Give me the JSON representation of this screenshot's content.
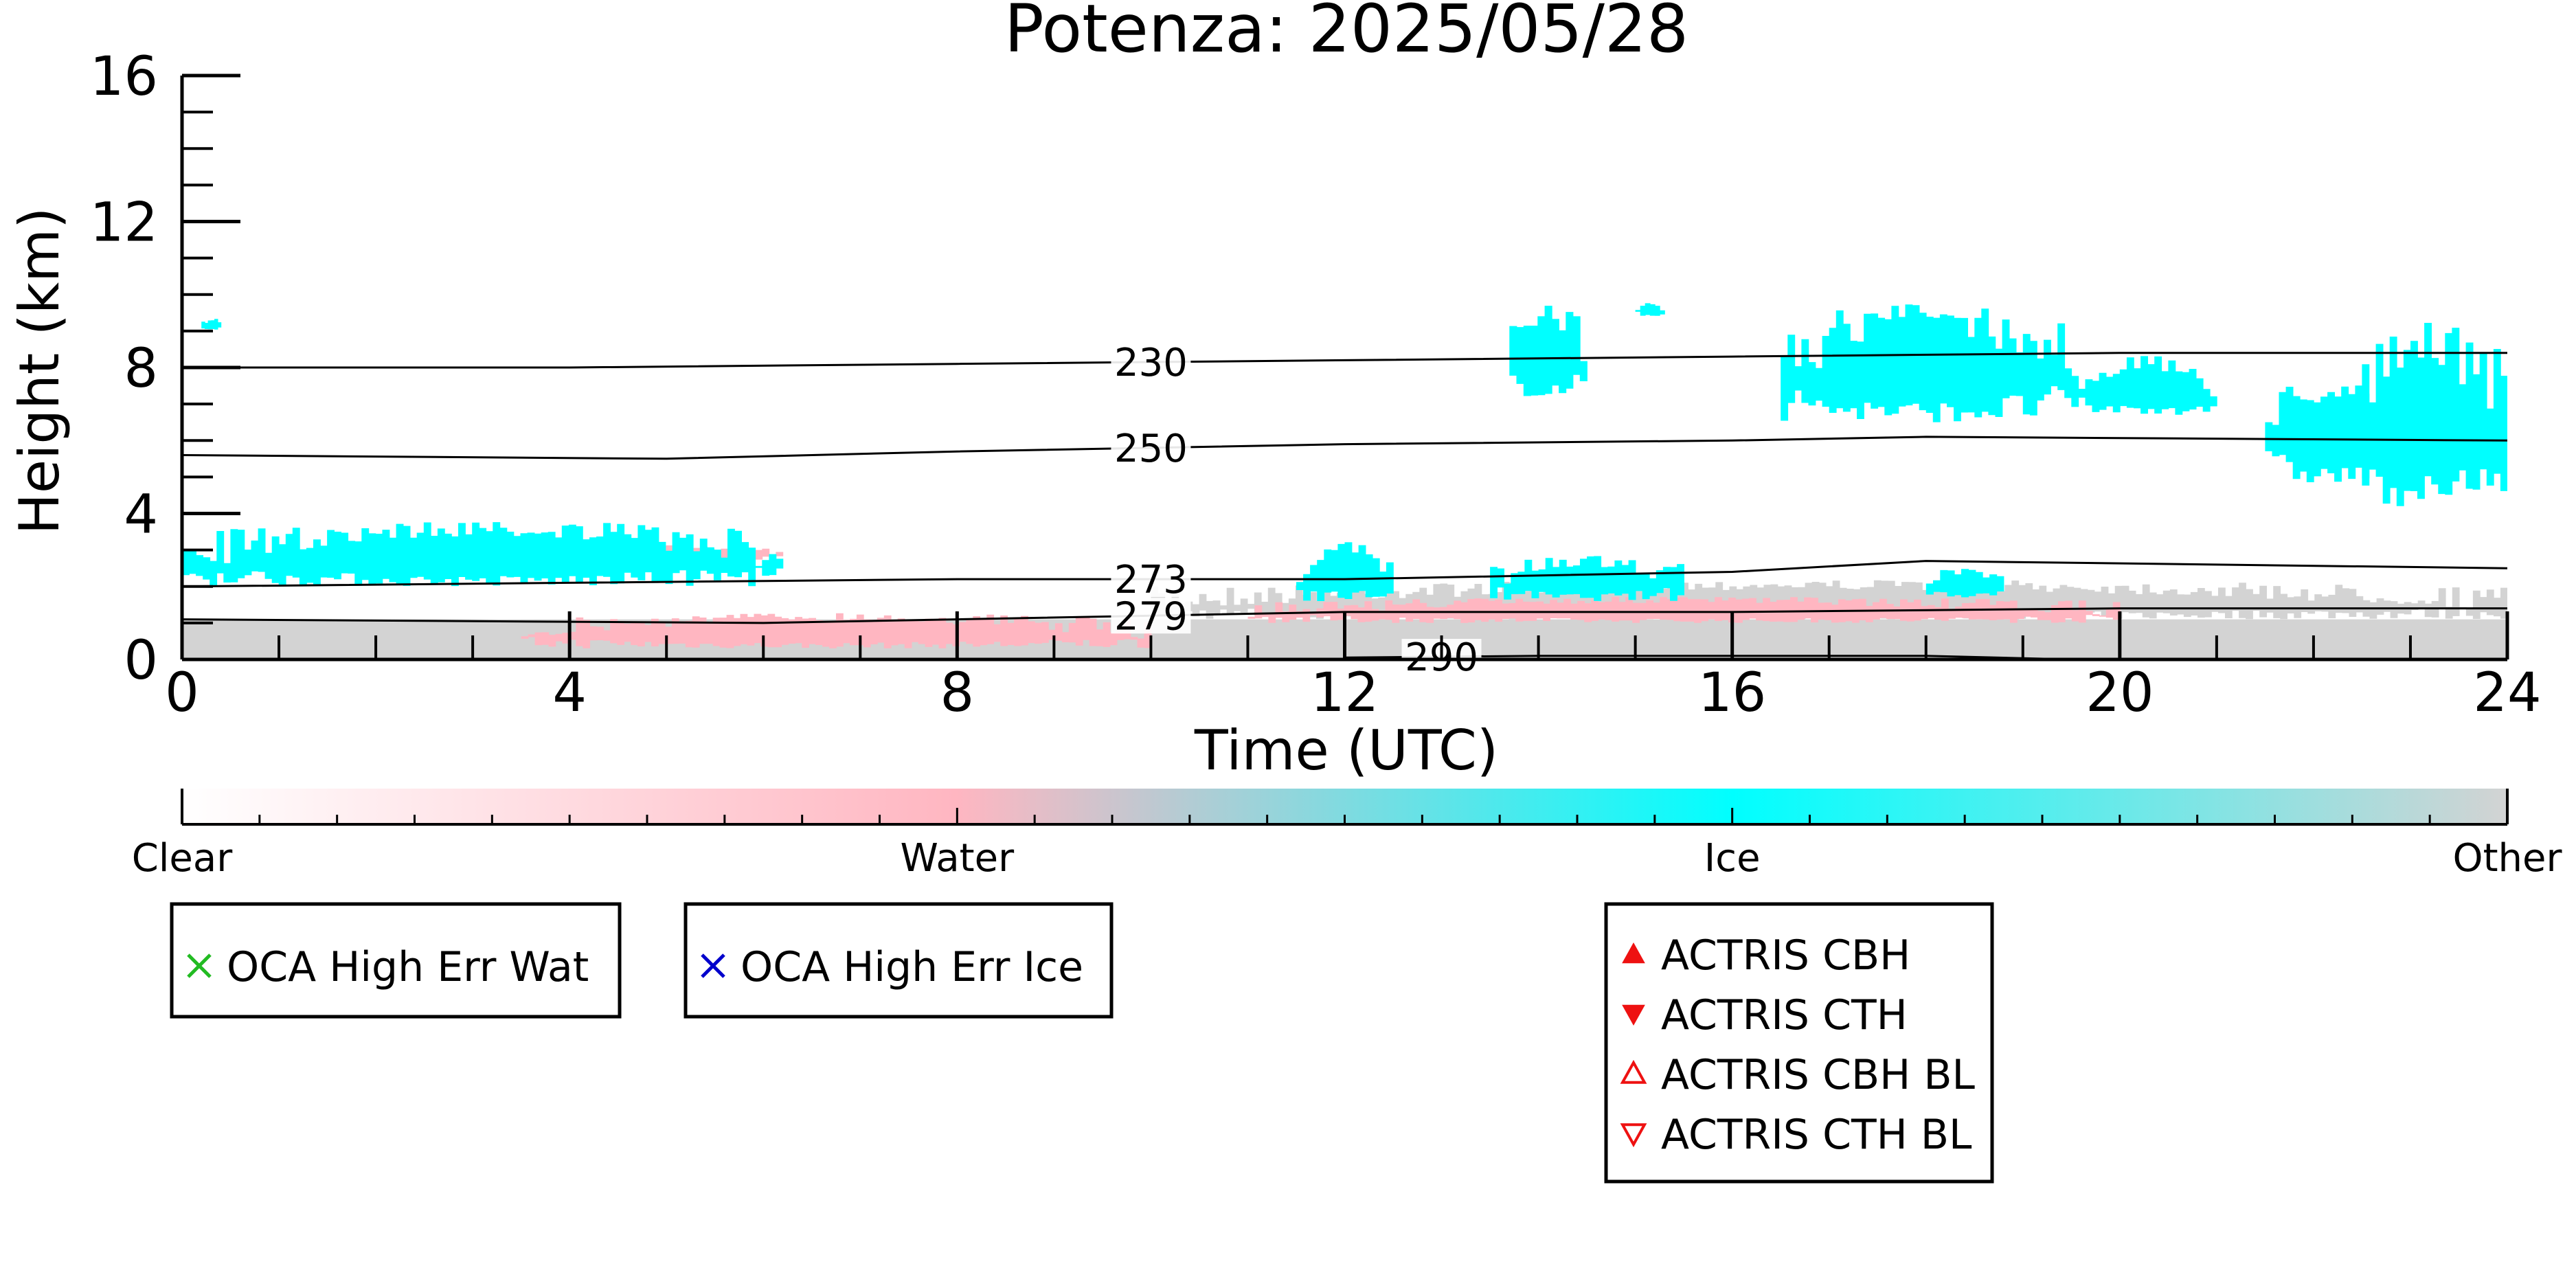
{
  "chart_data": {
    "type": "heatmap",
    "title": "Potenza: 2025/05/28",
    "xlabel": "Time (UTC)",
    "ylabel": "Height (km)",
    "xlim": [
      0,
      24
    ],
    "ylim": [
      0,
      16
    ],
    "x_ticks": [
      0,
      4,
      8,
      12,
      16,
      20,
      24
    ],
    "y_ticks": [
      0,
      4,
      8,
      12,
      16
    ],
    "colorbar": {
      "categories": [
        "Clear",
        "Water",
        "Ice",
        "Other"
      ],
      "colors": [
        "#ffffff",
        "#ffb6c1",
        "#00ffff",
        "#d3d3d3"
      ]
    },
    "classes": [
      {
        "class": "Ice",
        "color": "#00ffff",
        "regions": [
          {
            "x": [
              0.0,
              6.2
            ],
            "y": [
              2.0,
              4.0
            ]
          },
          {
            "x": [
              0.2,
              0.4
            ],
            "y": [
              9.0,
              9.4
            ]
          },
          {
            "x": [
              13.7,
              14.5
            ],
            "y": [
              7.2,
              10.0
            ]
          },
          {
            "x": [
              15.0,
              15.3
            ],
            "y": [
              9.4,
              9.9
            ]
          },
          {
            "x": [
              16.5,
              19.5
            ],
            "y": [
              6.5,
              10.2
            ]
          },
          {
            "x": [
              19.5,
              21.0
            ],
            "y": [
              6.7,
              8.5
            ]
          },
          {
            "x": [
              21.5,
              23.0
            ],
            "y": [
              4.8,
              8.2
            ]
          },
          {
            "x": [
              22.5,
              24.0
            ],
            "y": [
              4.2,
              9.8
            ]
          },
          {
            "x": [
              11.5,
              12.5
            ],
            "y": [
              1.6,
              3.4
            ]
          },
          {
            "x": [
              13.5,
              15.5
            ],
            "y": [
              1.6,
              3.0
            ]
          },
          {
            "x": [
              18.0,
              18.8
            ],
            "y": [
              1.7,
              2.6
            ]
          }
        ]
      },
      {
        "class": "Water",
        "color": "#ffb6c1",
        "regions": [
          {
            "x": [
              4.0,
              6.2
            ],
            "y": [
              2.7,
              3.2
            ]
          },
          {
            "x": [
              3.5,
              10.0
            ],
            "y": [
              0.3,
              1.4
            ]
          },
          {
            "x": [
              11.0,
              20.0
            ],
            "y": [
              1.0,
              1.8
            ]
          }
        ]
      },
      {
        "class": "Other",
        "color": "#d3d3d3",
        "regions": [
          {
            "x": [
              0.0,
              24.0
            ],
            "y": [
              0.0,
              1.1
            ]
          },
          {
            "x": [
              10.0,
              24.0
            ],
            "y": [
              1.1,
              2.3
            ]
          }
        ]
      }
    ],
    "contours": [
      {
        "label": "230",
        "x": [
          0,
          4,
          8,
          12,
          16,
          20,
          24
        ],
        "y": [
          8.0,
          8.0,
          8.1,
          8.2,
          8.3,
          8.4,
          8.4
        ]
      },
      {
        "label": "250",
        "x": [
          0,
          5,
          8,
          12,
          16,
          18,
          24
        ],
        "y": [
          5.6,
          5.5,
          5.7,
          5.9,
          6.0,
          6.1,
          6.0
        ]
      },
      {
        "label": "273",
        "x": [
          0,
          4,
          8,
          12,
          16,
          18,
          24
        ],
        "y": [
          2.0,
          2.1,
          2.2,
          2.2,
          2.4,
          2.7,
          2.5
        ]
      },
      {
        "label": "279",
        "x": [
          0,
          6,
          8,
          12,
          16,
          20,
          24
        ],
        "y": [
          1.1,
          1.0,
          1.1,
          1.3,
          1.3,
          1.4,
          1.4
        ]
      },
      {
        "label": "290",
        "x": [
          12,
          14,
          16,
          18,
          19.5
        ],
        "y": [
          0.05,
          0.1,
          0.1,
          0.1,
          0.0
        ]
      }
    ],
    "legends": [
      {
        "entries": [
          {
            "label": "OCA High Err Wat",
            "marker": "x-mark",
            "color": "#22bb22"
          }
        ]
      },
      {
        "entries": [
          {
            "label": "OCA High Err Ice",
            "marker": "x-mark",
            "color": "#0000cc"
          }
        ]
      },
      {
        "entries": [
          {
            "label": "ACTRIS CBH",
            "marker": "triangle-up-filled",
            "color": "#ee1111"
          },
          {
            "label": "ACTRIS CTH",
            "marker": "triangle-down-filled",
            "color": "#ee1111"
          },
          {
            "label": "ACTRIS CBH BL",
            "marker": "triangle-up-open",
            "color": "#ee1111"
          },
          {
            "label": "ACTRIS CTH BL",
            "marker": "triangle-down-open",
            "color": "#ee1111"
          }
        ]
      }
    ]
  }
}
